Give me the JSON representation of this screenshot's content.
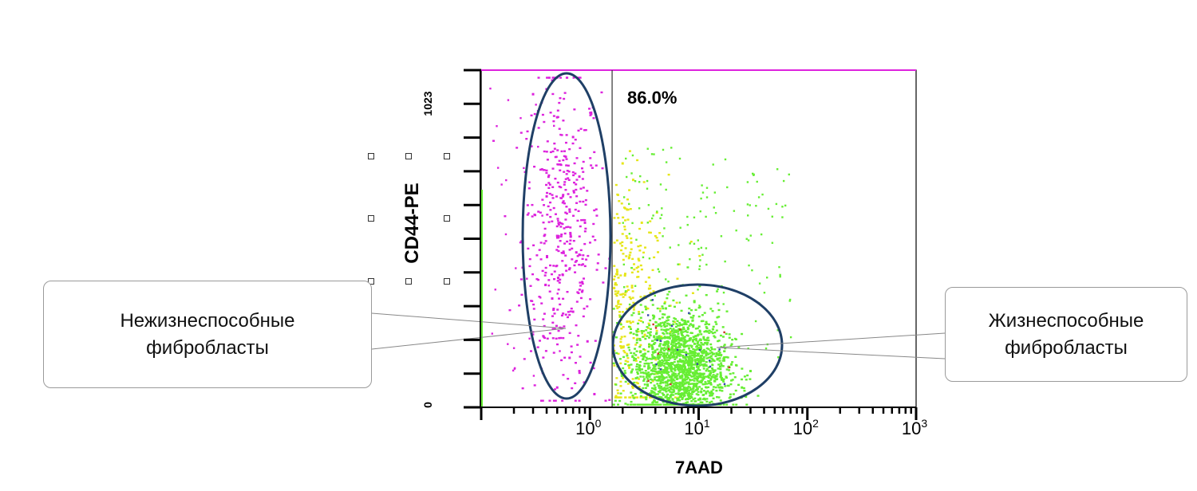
{
  "chart_data": {
    "type": "scatter",
    "title": "",
    "xlabel": "7AAD",
    "ylabel": "CD44-PE",
    "x_scale": "log",
    "xlim": [
      0.1,
      1000
    ],
    "x_ticks": [
      {
        "base": "10",
        "exp": "0",
        "value": 1
      },
      {
        "base": "10",
        "exp": "1",
        "value": 10
      },
      {
        "base": "10",
        "exp": "2",
        "value": 100
      },
      {
        "base": "10",
        "exp": "3",
        "value": 1000
      }
    ],
    "ylim": [
      0,
      1023
    ],
    "y_ticks": [
      "0",
      "1023"
    ],
    "grid": false,
    "gate_divider_x": 1.6,
    "gate_percent_label": "86.0%",
    "series": [
      {
        "color": "#dd22dd",
        "description_population": "left_nonviable",
        "sample_points": [
          [
            0.3,
            950
          ],
          [
            0.5,
            880
          ],
          [
            0.7,
            820
          ],
          [
            0.6,
            760
          ],
          [
            0.8,
            700
          ],
          [
            0.4,
            640
          ],
          [
            0.65,
            600
          ],
          [
            0.9,
            560
          ],
          [
            0.5,
            520
          ],
          [
            0.75,
            470
          ],
          [
            0.6,
            430
          ],
          [
            0.85,
            380
          ],
          [
            0.45,
            330
          ],
          [
            0.7,
            290
          ],
          [
            0.55,
            240
          ],
          [
            0.95,
            200
          ],
          [
            0.65,
            150
          ],
          [
            0.8,
            110
          ],
          [
            0.5,
            60
          ],
          [
            1.1,
            40
          ]
        ]
      },
      {
        "color": "#e6e619",
        "description_population": "yellow_intermediate",
        "sample_points": [
          [
            2.0,
            740
          ],
          [
            2.5,
            690
          ],
          [
            2.2,
            600
          ],
          [
            3.0,
            560
          ],
          [
            2.4,
            500
          ],
          [
            2.8,
            450
          ],
          [
            2.1,
            400
          ],
          [
            3.5,
            360
          ],
          [
            2.6,
            310
          ],
          [
            2.2,
            260
          ],
          [
            3.2,
            220
          ],
          [
            2.9,
            170
          ],
          [
            2.3,
            120
          ],
          [
            3.8,
            80
          ]
        ]
      },
      {
        "color": "#66ee33",
        "description_population": "viable_cluster",
        "sample_points": [
          [
            5,
            300
          ],
          [
            8,
            260
          ],
          [
            12,
            230
          ],
          [
            6,
            200
          ],
          [
            10,
            180
          ],
          [
            15,
            160
          ],
          [
            7,
            140
          ],
          [
            9,
            120
          ],
          [
            11,
            100
          ],
          [
            14,
            80
          ],
          [
            6,
            60
          ],
          [
            8,
            40
          ],
          [
            20,
            130
          ],
          [
            30,
            110
          ],
          [
            4,
            150
          ],
          [
            25,
            60
          ]
        ]
      }
    ]
  },
  "callouts": {
    "left": {
      "line1": "Нежизнеспособные",
      "line2": "фибробласты"
    },
    "right": {
      "line1": "Жизнеспособные",
      "line2": "фибробласты"
    }
  },
  "colors": {
    "gate_stroke": "#1f3f66",
    "pink": "#dd22dd",
    "yellow": "#e6e619",
    "green": "#66ee33",
    "axis": "#000000"
  }
}
